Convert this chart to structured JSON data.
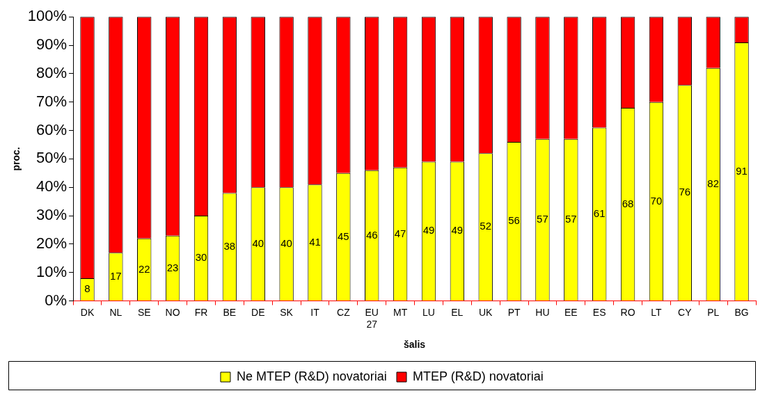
{
  "chart_data": {
    "type": "bar",
    "stacked": true,
    "xlabel": "šalis",
    "ylabel": "proc.",
    "categories": [
      "DK",
      "NL",
      "SE",
      "NO",
      "FR",
      "BE",
      "DE",
      "SK",
      "IT",
      "CZ",
      "EU 27",
      "MT",
      "LU",
      "EL",
      "UK",
      "PT",
      "HU",
      "EE",
      "ES",
      "RO",
      "LT",
      "CY",
      "PL",
      "BG"
    ],
    "series": [
      {
        "name": "Ne MTEP (R&D) novatoriai",
        "color": "#ffff00",
        "values": [
          8,
          17,
          22,
          23,
          30,
          38,
          40,
          40,
          41,
          45,
          46,
          47,
          49,
          49,
          52,
          56,
          57,
          57,
          61,
          68,
          70,
          76,
          82,
          91
        ],
        "value_labels": [
          "8",
          "17",
          "22",
          "23",
          "30",
          "38",
          "40",
          "40",
          "41",
          "45",
          "46",
          "47",
          "49",
          "49",
          "52",
          "56",
          "57",
          "57",
          "61",
          "68",
          "70",
          "76",
          "82",
          "91"
        ]
      },
      {
        "name": "MTEP (R&D) novatoriai",
        "color": "#ff0000",
        "values": [
          92,
          83,
          78,
          77,
          70,
          62,
          60,
          60,
          59,
          55,
          54,
          53,
          51,
          51,
          48,
          44,
          43,
          43,
          39,
          32,
          30,
          24,
          18,
          9
        ]
      }
    ],
    "ylim": [
      0,
      100
    ],
    "yticks": [
      {
        "value": 0,
        "label": "0%"
      },
      {
        "value": 10,
        "label": "10%"
      },
      {
        "value": 20,
        "label": "20%"
      },
      {
        "value": 30,
        "label": "30%"
      },
      {
        "value": 40,
        "label": "40%"
      },
      {
        "value": 50,
        "label": "50%"
      },
      {
        "value": 60,
        "label": "60%"
      },
      {
        "value": 70,
        "label": "70%"
      },
      {
        "value": 80,
        "label": "80%"
      },
      {
        "value": 90,
        "label": "90%"
      },
      {
        "value": 100,
        "label": "100%"
      }
    ],
    "grid": false,
    "legend": "bottom"
  }
}
